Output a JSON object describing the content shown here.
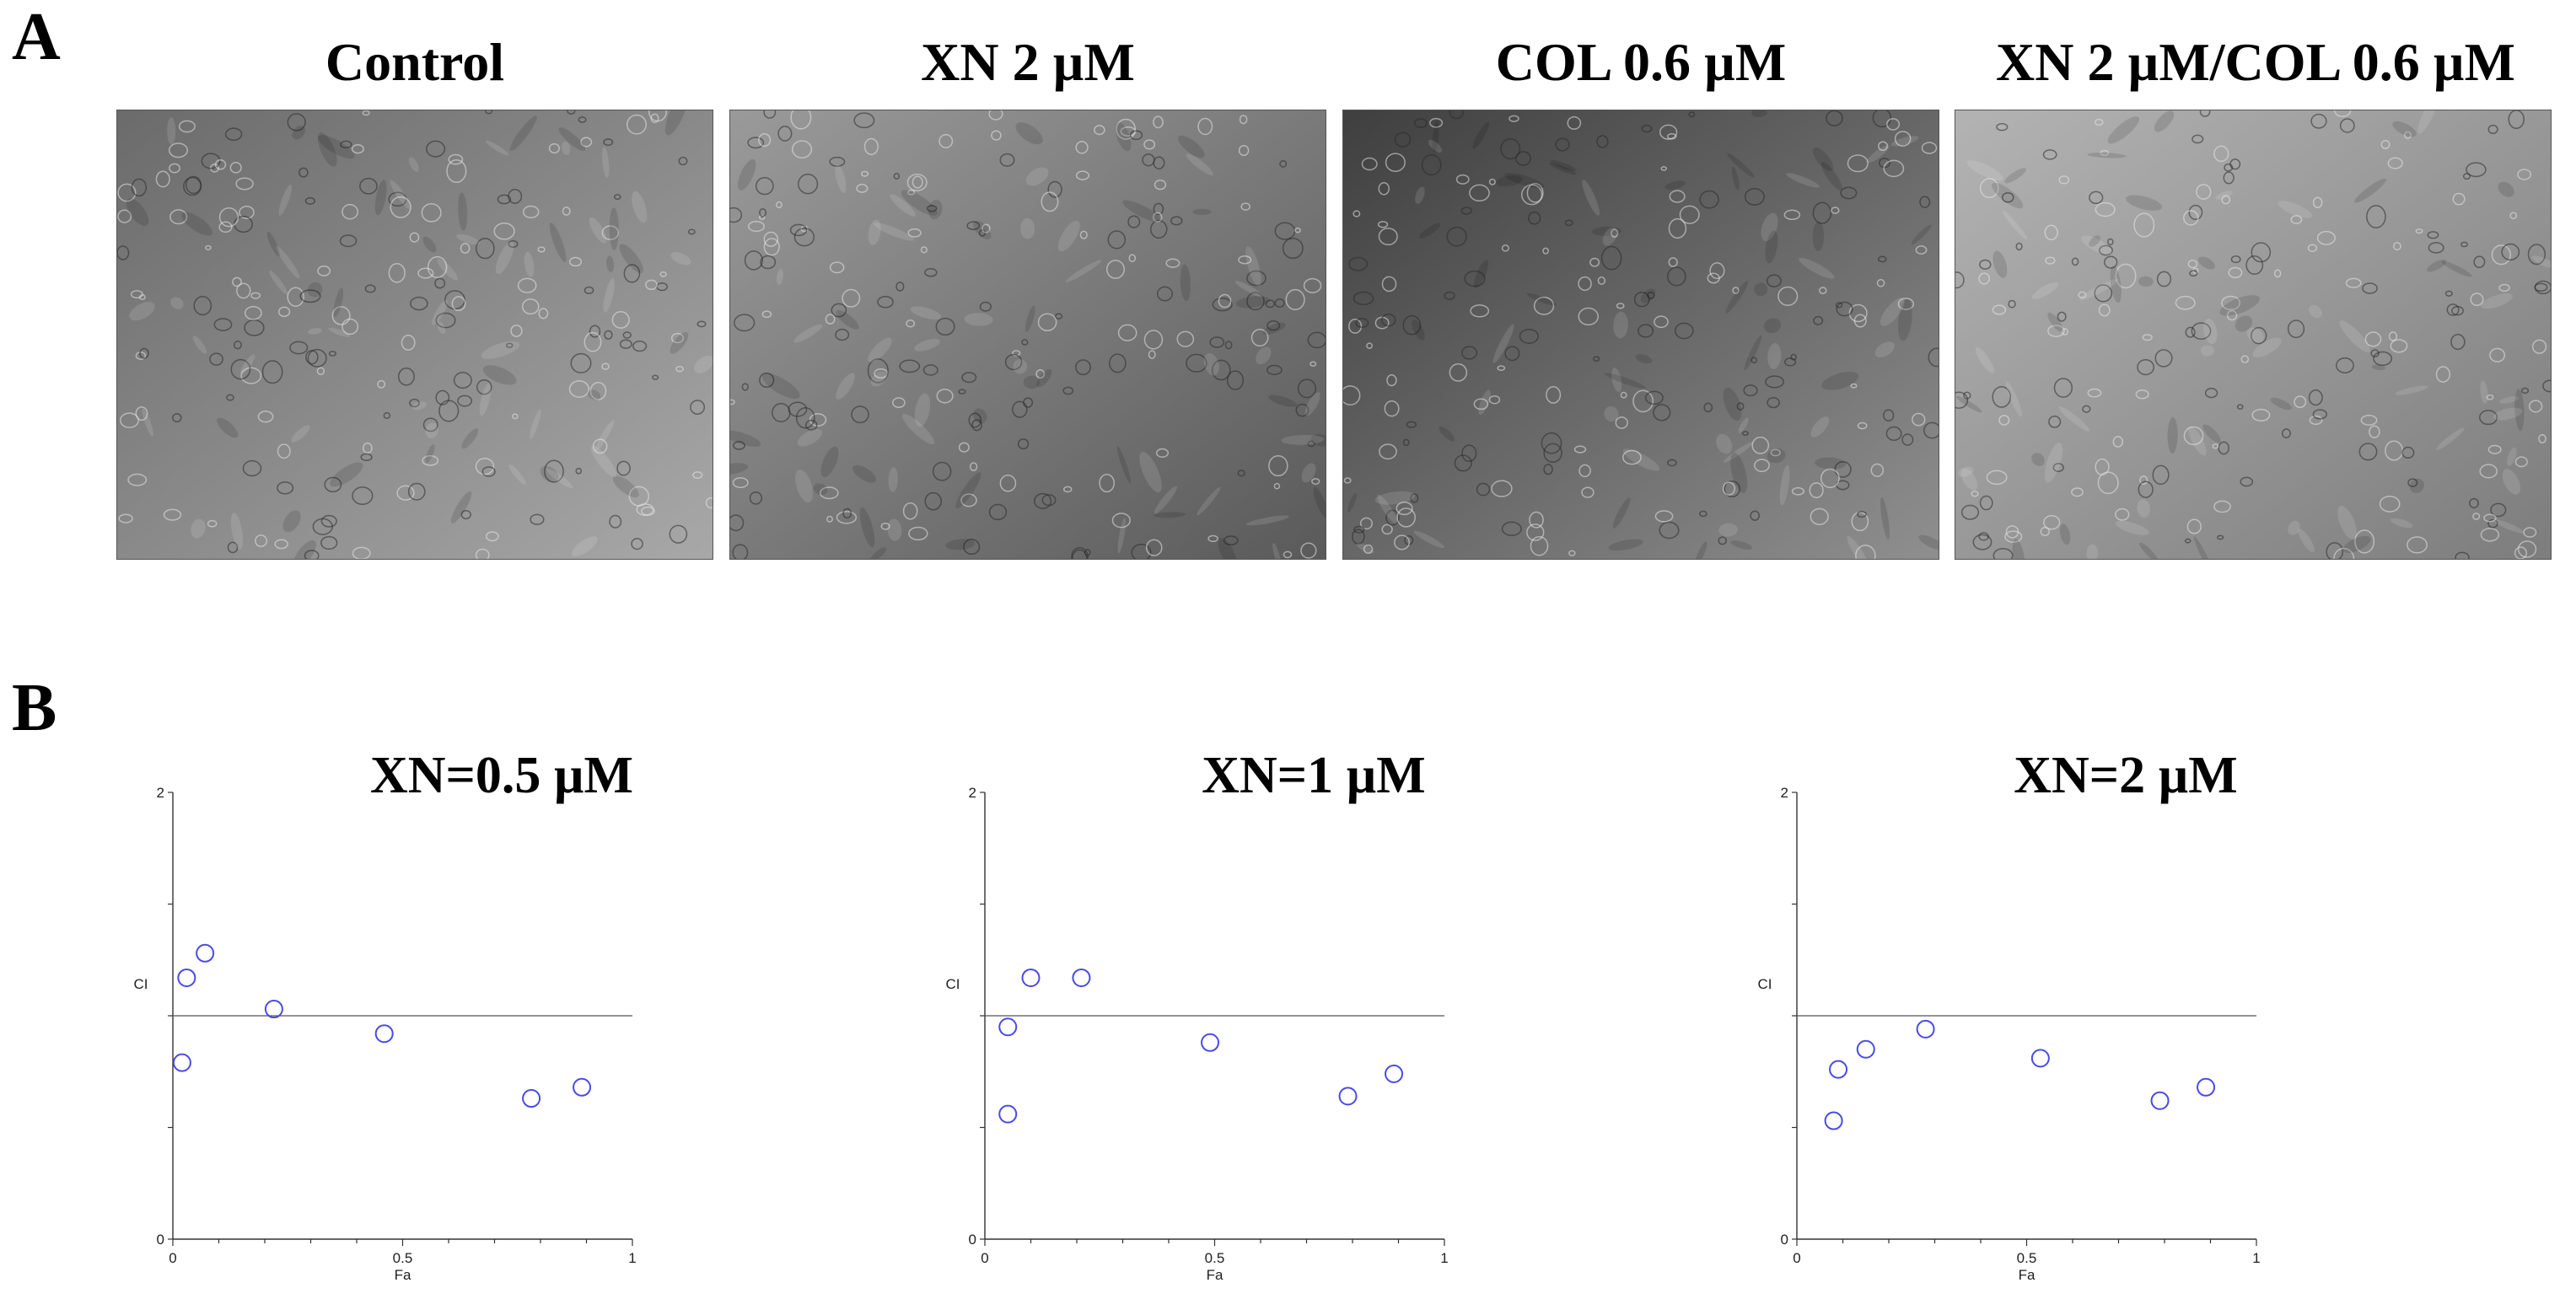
{
  "panel_labels": {
    "a": "A",
    "b": "B"
  },
  "images": [
    {
      "title": "Control",
      "bg_top": "#6b6b6b",
      "bg_bottom": "#a8a8a8"
    },
    {
      "title": "XN 2 µM",
      "bg_top": "#9a9a9a",
      "bg_bottom": "#5a5a5a"
    },
    {
      "title": "COL 0.6 µM",
      "bg_top": "#3f3f3f",
      "bg_bottom": "#8f8f8f"
    },
    {
      "title": "XN 2 µM/COL 0.6 µM",
      "bg_top": "#b3b3b3",
      "bg_bottom": "#7d7d7d"
    }
  ],
  "chart_data": [
    {
      "type": "scatter",
      "title": "XN=0.5 µM",
      "xlabel": "Fa",
      "ylabel": "CI",
      "xlim": [
        0,
        1
      ],
      "ylim": [
        0,
        2
      ],
      "x_ticks": [
        "0",
        "0.5",
        "1"
      ],
      "y_ticks": [
        "0",
        "2"
      ],
      "reference_line": 1,
      "marker_color": "#4a4ae6",
      "points": [
        {
          "x": 0.03,
          "y": 1.17
        },
        {
          "x": 0.07,
          "y": 1.28
        },
        {
          "x": 0.02,
          "y": 0.79
        },
        {
          "x": 0.22,
          "y": 1.03
        },
        {
          "x": 0.46,
          "y": 0.92
        },
        {
          "x": 0.78,
          "y": 0.63
        },
        {
          "x": 0.89,
          "y": 0.68
        }
      ]
    },
    {
      "type": "scatter",
      "title": "XN=1 µM",
      "xlabel": "Fa",
      "ylabel": "CI",
      "xlim": [
        0,
        1
      ],
      "ylim": [
        0,
        2
      ],
      "x_ticks": [
        "0",
        "0.5",
        "1"
      ],
      "y_ticks": [
        "0",
        "2"
      ],
      "reference_line": 1,
      "marker_color": "#4a4ae6",
      "points": [
        {
          "x": 0.05,
          "y": 0.95
        },
        {
          "x": 0.05,
          "y": 0.56
        },
        {
          "x": 0.1,
          "y": 1.17
        },
        {
          "x": 0.21,
          "y": 1.17
        },
        {
          "x": 0.49,
          "y": 0.88
        },
        {
          "x": 0.79,
          "y": 0.64
        },
        {
          "x": 0.89,
          "y": 0.74
        }
      ]
    },
    {
      "type": "scatter",
      "title": "XN=2 µM",
      "xlabel": "Fa",
      "ylabel": "CI",
      "xlim": [
        0,
        1
      ],
      "ylim": [
        0,
        2
      ],
      "x_ticks": [
        "0",
        "0.5",
        "1"
      ],
      "y_ticks": [
        "0",
        "2"
      ],
      "reference_line": 1,
      "marker_color": "#4a4ae6",
      "points": [
        {
          "x": 0.08,
          "y": 0.53
        },
        {
          "x": 0.09,
          "y": 0.76
        },
        {
          "x": 0.15,
          "y": 0.85
        },
        {
          "x": 0.28,
          "y": 0.94
        },
        {
          "x": 0.53,
          "y": 0.81
        },
        {
          "x": 0.79,
          "y": 0.62
        },
        {
          "x": 0.89,
          "y": 0.68
        }
      ]
    }
  ]
}
